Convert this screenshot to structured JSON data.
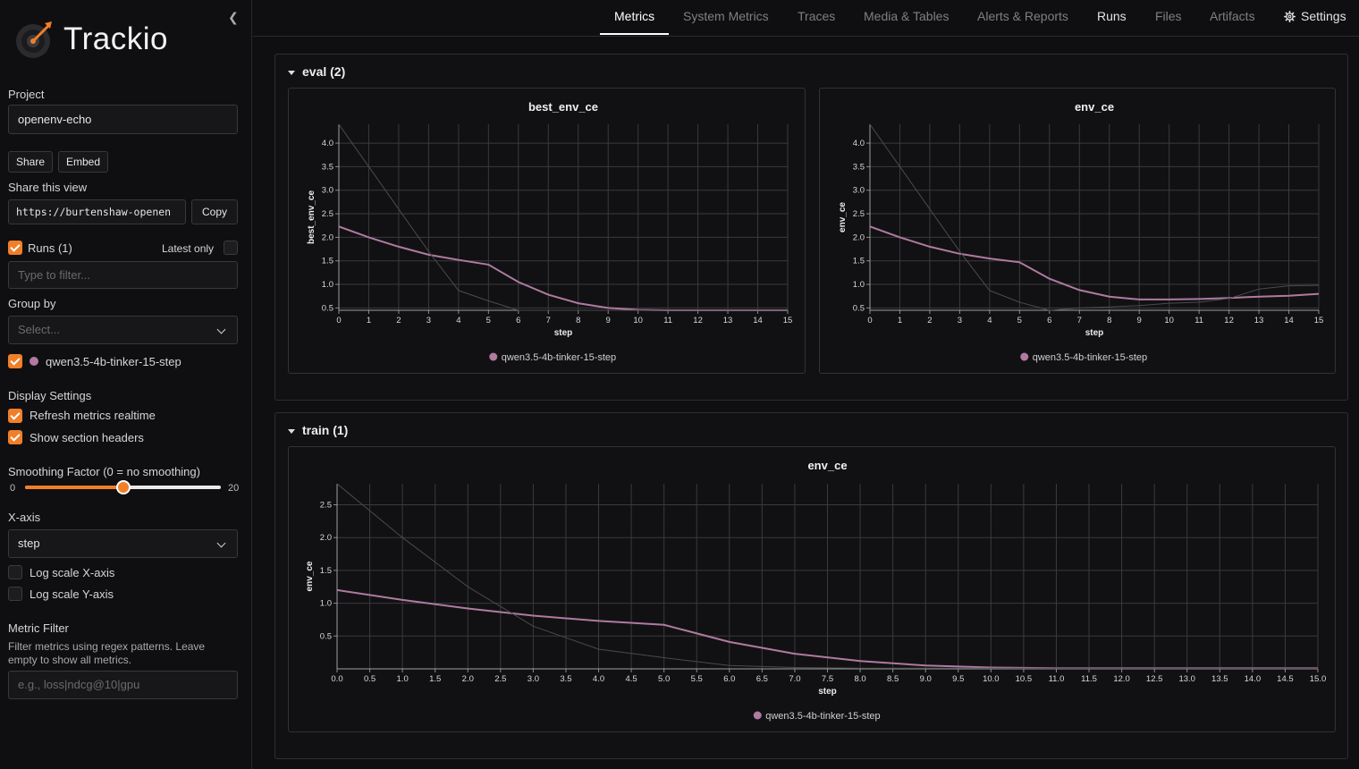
{
  "sidebar": {
    "app_name": "Trackio",
    "project_label": "Project",
    "project_value": "openenv-echo",
    "share_button": "Share",
    "embed_button": "Embed",
    "share_view_label": "Share this view",
    "share_url": "https://burtenshaw-openen",
    "copy_button": "Copy",
    "runs_label": "Runs (1)",
    "latest_only_label": "Latest only",
    "filter_placeholder": "Type to filter...",
    "group_by_label": "Group by",
    "group_by_placeholder": "Select...",
    "run_name": "qwen3.5-4b-tinker-15-step",
    "display_settings_label": "Display Settings",
    "refresh_label": "Refresh metrics realtime",
    "section_headers_label": "Show section headers",
    "smoothing_label": "Smoothing Factor (0 = no smoothing)",
    "smoothing_min": "0",
    "smoothing_max": "20",
    "smoothing_value": 10,
    "xaxis_label": "X-axis",
    "xaxis_value": "step",
    "log_x_label": "Log scale X-axis",
    "log_y_label": "Log scale Y-axis",
    "metric_filter_label": "Metric Filter",
    "metric_filter_help": "Filter metrics using regex patterns. Leave empty to show all metrics.",
    "metric_filter_placeholder": "e.g., loss|ndcg@10|gpu"
  },
  "nav": {
    "tabs": [
      "Metrics",
      "System Metrics",
      "Traces",
      "Media & Tables",
      "Alerts & Reports",
      "Runs",
      "Files",
      "Artifacts",
      "Settings"
    ],
    "active": "Metrics"
  },
  "colors": {
    "accent": "#f07f2a",
    "run": "#b07aa1",
    "raw": "#4a4a4f",
    "grid": "#3a3a3f"
  },
  "sections": [
    {
      "title": "eval (2)"
    },
    {
      "title": "train (1)"
    }
  ],
  "chart_data": [
    {
      "type": "line",
      "title": "best_env_ce",
      "xlabel": "step",
      "ylabel": "best_env_ce",
      "xlim": [
        0,
        15
      ],
      "ylim": [
        0.45,
        4.4
      ],
      "xticks": [
        0,
        1,
        2,
        3,
        4,
        5,
        6,
        7,
        8,
        9,
        10,
        11,
        12,
        13,
        14,
        15
      ],
      "yticks": [
        0.5,
        1.0,
        1.5,
        2.0,
        2.5,
        3.0,
        3.5,
        4.0
      ],
      "ytick_labels": [
        "0.5",
        "1.0",
        "1.5",
        "2.0",
        "2.5",
        "3.0",
        "3.5",
        "4.0"
      ],
      "legend": "bottom",
      "grid": true,
      "series": [
        {
          "name": "qwen3.5-4b-tinker-15-step",
          "kind": "smoothed",
          "x": [
            0,
            1,
            2,
            3,
            4,
            5,
            6,
            7,
            8,
            9,
            10,
            11,
            12,
            13,
            14,
            15
          ],
          "y": [
            2.23,
            2.0,
            1.8,
            1.63,
            1.52,
            1.42,
            1.05,
            0.78,
            0.6,
            0.5,
            0.46,
            0.45,
            0.45,
            0.45,
            0.45,
            0.45
          ]
        },
        {
          "name": "qwen3.5-4b-tinker-15-step",
          "kind": "raw",
          "x": [
            0,
            1,
            2,
            3,
            4,
            5,
            6,
            7,
            8,
            9,
            10,
            11,
            12,
            13,
            14,
            15
          ],
          "y": [
            4.4,
            3.5,
            2.6,
            1.7,
            0.87,
            0.65,
            0.45,
            0.45,
            0.45,
            0.45,
            0.45,
            0.45,
            0.45,
            0.45,
            0.45,
            0.45
          ]
        }
      ]
    },
    {
      "type": "line",
      "title": "env_ce",
      "xlabel": "step",
      "ylabel": "env_ce",
      "xlim": [
        0,
        15
      ],
      "ylim": [
        0.45,
        4.4
      ],
      "xticks": [
        0,
        1,
        2,
        3,
        4,
        5,
        6,
        7,
        8,
        9,
        10,
        11,
        12,
        13,
        14,
        15
      ],
      "yticks": [
        0.5,
        1.0,
        1.5,
        2.0,
        2.5,
        3.0,
        3.5,
        4.0
      ],
      "ytick_labels": [
        "0.5",
        "1.0",
        "1.5",
        "2.0",
        "2.5",
        "3.0",
        "3.5",
        "4.0"
      ],
      "legend": "bottom",
      "grid": true,
      "series": [
        {
          "name": "qwen3.5-4b-tinker-15-step",
          "kind": "smoothed",
          "x": [
            0,
            1,
            2,
            3,
            4,
            5,
            6,
            7,
            8,
            9,
            10,
            11,
            12,
            13,
            14,
            15
          ],
          "y": [
            2.23,
            2.0,
            1.8,
            1.65,
            1.55,
            1.47,
            1.12,
            0.88,
            0.74,
            0.68,
            0.68,
            0.69,
            0.71,
            0.74,
            0.76,
            0.8
          ]
        },
        {
          "name": "qwen3.5-4b-tinker-15-step",
          "kind": "raw",
          "x": [
            0,
            1,
            2,
            3,
            4,
            5,
            6,
            7,
            8,
            9,
            10,
            11,
            12,
            13,
            14,
            15
          ],
          "y": [
            4.4,
            3.5,
            2.6,
            1.7,
            0.87,
            0.62,
            0.45,
            0.5,
            0.52,
            0.55,
            0.6,
            0.62,
            0.7,
            0.9,
            0.97,
            0.98
          ]
        }
      ]
    },
    {
      "type": "line",
      "title": "env_ce",
      "xlabel": "step",
      "ylabel": "env_ce",
      "xlim": [
        0,
        15
      ],
      "ylim": [
        0,
        2.82
      ],
      "xticks": [
        0,
        0.5,
        1,
        1.5,
        2,
        2.5,
        3,
        3.5,
        4,
        4.5,
        5,
        5.5,
        6,
        6.5,
        7,
        7.5,
        8,
        8.5,
        9,
        9.5,
        10,
        10.5,
        11,
        11.5,
        12,
        12.5,
        13,
        13.5,
        14,
        14.5,
        15
      ],
      "xtick_labels": [
        "0.0",
        "0.5",
        "1.0",
        "1.5",
        "2.0",
        "2.5",
        "3.0",
        "3.5",
        "4.0",
        "4.5",
        "5.0",
        "5.5",
        "6.0",
        "6.5",
        "7.0",
        "7.5",
        "8.0",
        "8.5",
        "9.0",
        "9.5",
        "10.0",
        "10.5",
        "11.0",
        "11.5",
        "12.0",
        "12.5",
        "13.0",
        "13.5",
        "14.0",
        "14.5",
        "15.0"
      ],
      "yticks": [
        0.5,
        1.0,
        1.5,
        2.0,
        2.5
      ],
      "ytick_labels": [
        "0.5",
        "1.0",
        "1.5",
        "2.0",
        "2.5"
      ],
      "legend": "bottom",
      "grid": true,
      "series": [
        {
          "name": "qwen3.5-4b-tinker-15-step",
          "kind": "smoothed",
          "x": [
            0,
            1,
            2,
            3,
            4,
            5,
            6,
            7,
            8,
            9,
            10,
            11,
            12,
            13,
            14,
            15
          ],
          "y": [
            1.2,
            1.05,
            0.92,
            0.81,
            0.73,
            0.67,
            0.41,
            0.23,
            0.12,
            0.05,
            0.02,
            0.01,
            0.01,
            0.01,
            0.01,
            0.01
          ]
        },
        {
          "name": "qwen3.5-4b-tinker-15-step",
          "kind": "raw",
          "x": [
            0,
            1,
            2,
            3,
            4,
            5,
            6,
            7,
            8,
            9,
            10,
            11,
            12,
            13,
            14,
            15
          ],
          "y": [
            2.82,
            2.0,
            1.25,
            0.65,
            0.3,
            0.17,
            0.05,
            0.02,
            0.01,
            0.01,
            0.01,
            0.01,
            0.01,
            0.01,
            0.01,
            0.01
          ]
        }
      ]
    }
  ]
}
